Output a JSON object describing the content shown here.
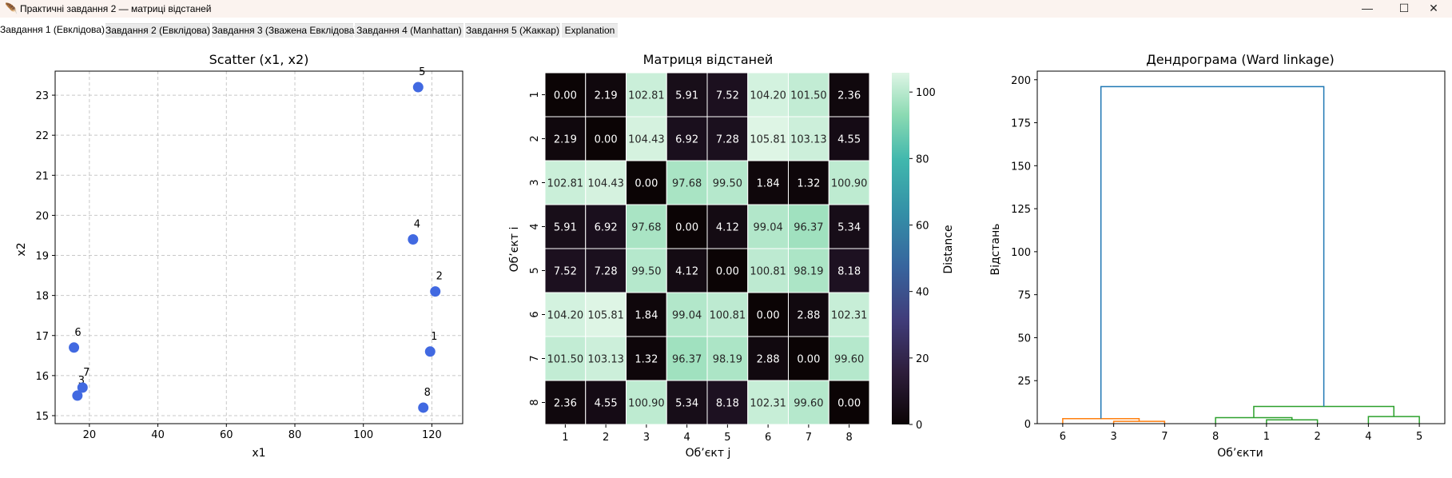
{
  "window": {
    "title": "Практичні завдання 2 — матриці відстаней",
    "minimize_glyph": "—",
    "maximize_glyph": "☐",
    "close_glyph": "✕"
  },
  "tabs": [
    {
      "label": "Завдання 1 (Евклідова)",
      "active": true
    },
    {
      "label": "Завдання 2 (Евклідова)",
      "active": false
    },
    {
      "label": "Завдання 3 (Зважена Евклідова)",
      "active": false
    },
    {
      "label": "Завдання 4 (Manhattan)",
      "active": false
    },
    {
      "label": "Завдання 5 (Жаккар)",
      "active": false
    },
    {
      "label": "Explanation",
      "active": false
    }
  ],
  "chart_data": [
    {
      "type": "scatter",
      "title": "Scatter (x1, x2)",
      "xlabel": "x1",
      "ylabel": "x2",
      "xlim": [
        10,
        129
      ],
      "ylim": [
        14.8,
        23.6
      ],
      "xticks": [
        20,
        40,
        60,
        80,
        100,
        120
      ],
      "yticks": [
        15,
        16,
        17,
        18,
        19,
        20,
        21,
        22,
        23
      ],
      "grid": true,
      "color": "#4169e1",
      "points": [
        {
          "label": "1",
          "x": 119.5,
          "y": 16.6
        },
        {
          "label": "2",
          "x": 121,
          "y": 18.1
        },
        {
          "label": "3",
          "x": 16.5,
          "y": 15.5
        },
        {
          "label": "4",
          "x": 114.5,
          "y": 19.4
        },
        {
          "label": "5",
          "x": 116,
          "y": 23.2
        },
        {
          "label": "6",
          "x": 15.5,
          "y": 16.7
        },
        {
          "label": "7",
          "x": 18,
          "y": 15.7
        },
        {
          "label": "8",
          "x": 117.5,
          "y": 15.2
        }
      ]
    },
    {
      "type": "heatmap",
      "title": "Матриця відстаней",
      "xlabel": "Об’єкт j",
      "ylabel": "Об’єкт i",
      "labels": [
        "1",
        "2",
        "3",
        "4",
        "5",
        "6",
        "7",
        "8"
      ],
      "values": [
        [
          0.0,
          2.19,
          102.81,
          5.91,
          7.52,
          104.2,
          101.5,
          2.36
        ],
        [
          2.19,
          0.0,
          104.43,
          6.92,
          7.28,
          105.81,
          103.13,
          4.55
        ],
        [
          102.81,
          104.43,
          0.0,
          97.68,
          99.5,
          1.84,
          1.32,
          100.9
        ],
        [
          5.91,
          6.92,
          97.68,
          0.0,
          4.12,
          99.04,
          96.37,
          5.34
        ],
        [
          7.52,
          7.28,
          99.5,
          4.12,
          0.0,
          100.81,
          98.19,
          8.18
        ],
        [
          104.2,
          105.81,
          1.84,
          99.04,
          100.81,
          0.0,
          2.88,
          102.31
        ],
        [
          101.5,
          103.13,
          1.32,
          96.37,
          98.19,
          2.88,
          0.0,
          99.6
        ],
        [
          2.36,
          4.55,
          100.9,
          5.34,
          8.18,
          102.31,
          99.6,
          0.0
        ]
      ],
      "colorbar_label": "Distance",
      "colorbar_range": [
        0,
        105.81
      ],
      "colorbar_ticks": [
        0,
        20,
        40,
        60,
        80,
        100
      ],
      "colormap": "mako"
    },
    {
      "type": "dendrogram",
      "title": "Дендрограма (Ward linkage)",
      "xlabel": "Об’єкти",
      "ylabel": "Відстань",
      "ylim": [
        0,
        205
      ],
      "yticks": [
        0,
        25,
        50,
        75,
        100,
        125,
        150,
        175,
        200
      ],
      "leaf_order": [
        "6",
        "3",
        "7",
        "8",
        "1",
        "2",
        "4",
        "5"
      ],
      "merges": [
        {
          "a": [
            3,
            7
          ],
          "height": 1.32,
          "color": "#ff7f0e"
        },
        {
          "a": [
            6,
            "3+7"
          ],
          "height": 2.9,
          "color": "#ff7f0e"
        },
        {
          "a": [
            1,
            2
          ],
          "height": 2.19,
          "color": "#2ca02c"
        },
        {
          "a": [
            8,
            "1+2"
          ],
          "height": 3.5,
          "color": "#2ca02c"
        },
        {
          "a": [
            4,
            5
          ],
          "height": 4.12,
          "color": "#2ca02c"
        },
        {
          "a": [
            "8+1+2",
            "4+5"
          ],
          "height": 10.0,
          "color": "#2ca02c"
        },
        {
          "a": [
            "6+3+7",
            "8+1+2+4+5"
          ],
          "height": 196,
          "color": "#1f77b4"
        }
      ]
    }
  ]
}
